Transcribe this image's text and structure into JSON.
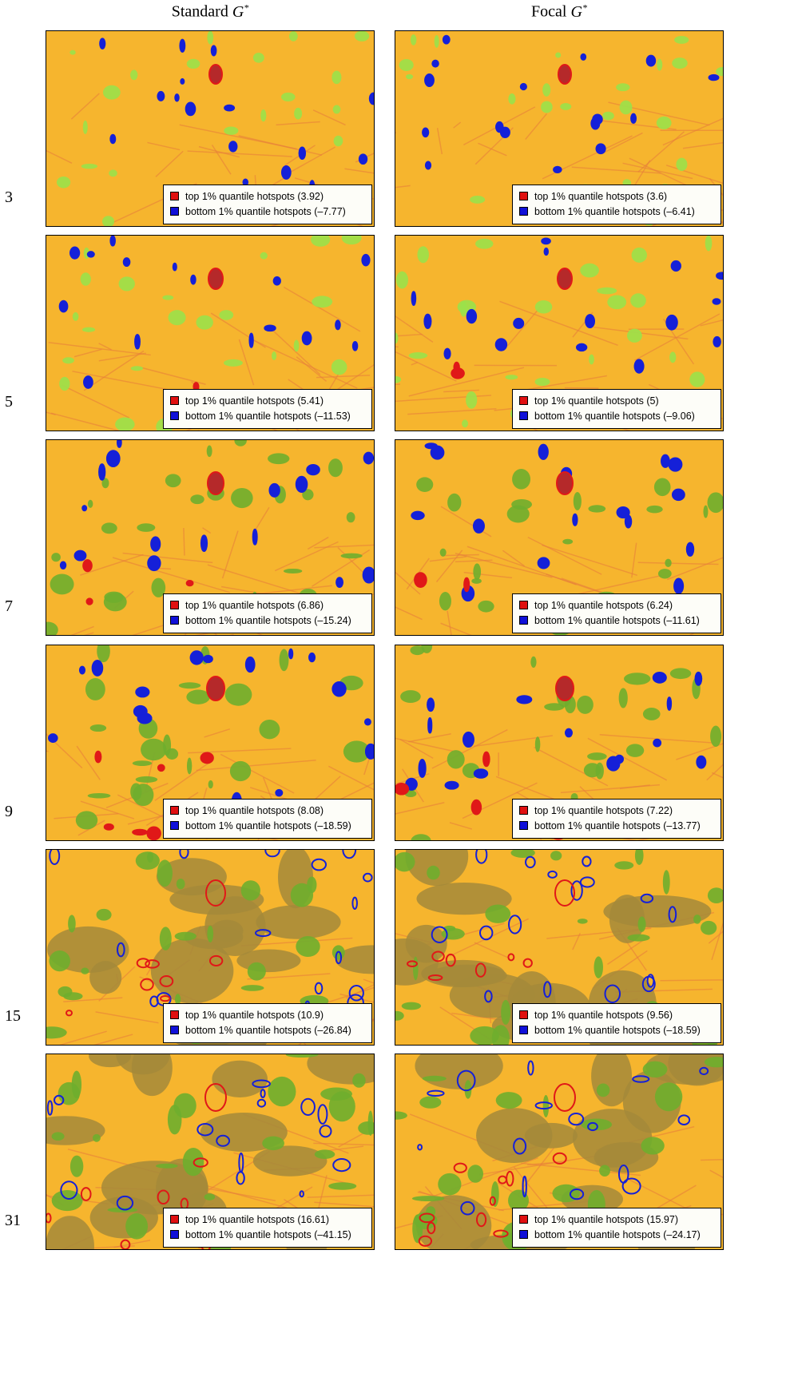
{
  "columns": [
    {
      "title": "Standard",
      "symbol": "G",
      "superscript": "*"
    },
    {
      "title": "Focal",
      "symbol": "G",
      "superscript": "*"
    }
  ],
  "rows": [
    {
      "label": "3",
      "panels": [
        {
          "top": "top 1% quantile hotspots (3.92)",
          "bottom": "bottom 1% quantile hotspots (–7.77)"
        },
        {
          "top": "top 1% quantile hotspots (3.6)",
          "bottom": "bottom 1% quantile hotspots (–6.41)"
        }
      ]
    },
    {
      "label": "5",
      "panels": [
        {
          "top": "top 1% quantile hotspots (5.41)",
          "bottom": "bottom 1% quantile hotspots (–11.53)"
        },
        {
          "top": "top 1% quantile hotspots (5)",
          "bottom": "bottom 1% quantile hotspots (–9.06)"
        }
      ]
    },
    {
      "label": "7",
      "panels": [
        {
          "top": "top 1% quantile hotspots (6.86)",
          "bottom": "bottom 1% quantile hotspots (–15.24)"
        },
        {
          "top": "top 1% quantile hotspots (6.24)",
          "bottom": "bottom 1% quantile hotspots (–11.61)"
        }
      ]
    },
    {
      "label": "9",
      "panels": [
        {
          "top": "top 1% quantile hotspots (8.08)",
          "bottom": "bottom 1% quantile hotspots (–18.59)"
        },
        {
          "top": "top 1% quantile hotspots (7.22)",
          "bottom": "bottom 1% quantile hotspots (–13.77)"
        }
      ]
    },
    {
      "label": "15",
      "panels": [
        {
          "top": "top 1% quantile hotspots (10.9)",
          "bottom": "bottom 1% quantile hotspots (–26.84)"
        },
        {
          "top": "top 1% quantile hotspots (9.56)",
          "bottom": "bottom 1% quantile hotspots (–18.59)"
        }
      ]
    },
    {
      "label": "31",
      "panels": [
        {
          "top": "top 1% quantile hotspots (16.61)",
          "bottom": "bottom 1% quantile hotspots (–41.15)"
        },
        {
          "top": "top 1% quantile hotspots (15.97)",
          "bottom": "bottom 1% quantile hotspots (–24.17)"
        }
      ]
    }
  ]
}
